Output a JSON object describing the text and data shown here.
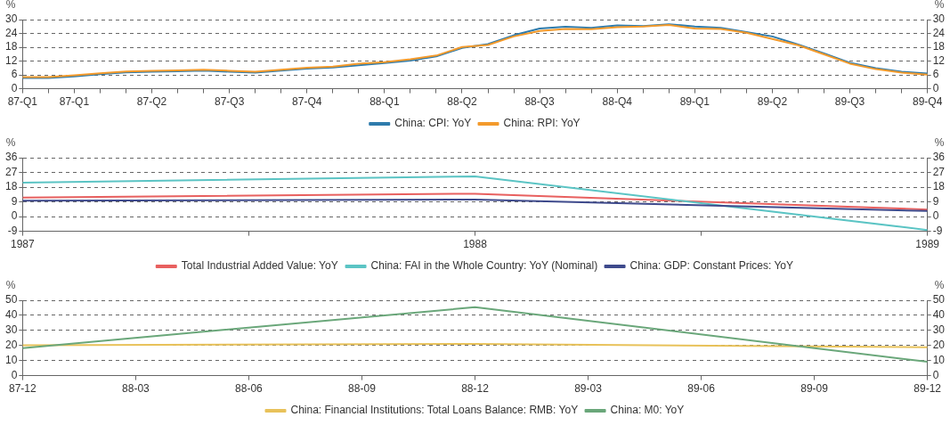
{
  "chart_data": [
    {
      "type": "line",
      "ylabel": "%",
      "y2label": "%",
      "categories": [
        "87-Q1",
        null,
        "87-Q1",
        null,
        null,
        "87-Q2",
        null,
        null,
        "87-Q3",
        null,
        null,
        "87-Q4",
        null,
        null,
        "88-Q1",
        null,
        null,
        "88-Q2",
        null,
        null,
        "88-Q3",
        null,
        null,
        "88-Q4",
        null,
        null,
        "89-Q1",
        null,
        null,
        "89-Q2",
        null,
        null,
        "89-Q3",
        null,
        null,
        "89-Q4"
      ],
      "series": [
        {
          "name": "China: CPI: YoY",
          "color": "#2e7bac",
          "values": [
            4.7,
            4.7,
            5.4,
            6.3,
            7.1,
            7.4,
            7.6,
            7.9,
            7.4,
            7.0,
            7.9,
            8.7,
            9.2,
            10.2,
            11.2,
            12.2,
            14.0,
            17.7,
            19.4,
            23.2,
            26.1,
            26.9,
            26.4,
            27.5,
            27.2,
            28.0,
            27.0,
            26.4,
            24.6,
            22.7,
            19.2,
            15.3,
            11.3,
            8.9,
            7.4,
            6.6
          ]
        },
        {
          "name": "China: RPI: YoY",
          "color": "#f39a2c",
          "values": [
            5.1,
            5.1,
            5.8,
            6.7,
            7.5,
            7.8,
            8.0,
            8.3,
            7.8,
            7.4,
            8.3,
            9.1,
            9.6,
            10.9,
            11.5,
            12.8,
            14.4,
            18.1,
            19.0,
            22.7,
            25.1,
            25.9,
            25.8,
            26.7,
            27.0,
            27.7,
            26.1,
            25.9,
            24.3,
            21.6,
            18.9,
            14.9,
            10.9,
            8.5,
            7.0,
            6.1
          ]
        }
      ],
      "ylim": [
        0,
        30
      ],
      "yticks": [
        0,
        6,
        12,
        18,
        24,
        30
      ],
      "y2lim": [
        0,
        30
      ],
      "y2ticks": [
        0,
        6,
        12,
        18,
        24,
        30
      ],
      "grid": "y",
      "legend": "bottom",
      "marker": "none",
      "line_style": "solid"
    },
    {
      "type": "line",
      "ylabel": "%",
      "y2label": "%",
      "x": [
        1987,
        1988,
        1989
      ],
      "series": [
        {
          "name": "Total Industrial Added Value: YoY",
          "color": "#e8605f",
          "values": [
            11.6,
            14.0,
            4.3
          ]
        },
        {
          "name": "China: FAI in the Whole Country: YoY (Nominal)",
          "color": "#5bc4c4",
          "values": [
            20.8,
            24.6,
            -8.2
          ]
        },
        {
          "name": "China: GDP: Constant Prices: YoY",
          "color": "#3e4a8c",
          "values": [
            9.7,
            10.4,
            3.4
          ]
        }
      ],
      "xlim": [
        1987,
        1989
      ],
      "xticks": [
        1987,
        {
          "value": 1987.5,
          "label": null
        },
        1988,
        {
          "value": 1988.5,
          "label": null
        },
        1989
      ],
      "ylim": [
        -9,
        36
      ],
      "yticks": [
        -9,
        0,
        9,
        18,
        27,
        36
      ],
      "y2lim": [
        -9,
        36
      ],
      "y2ticks": [
        -9,
        0,
        9,
        18,
        27,
        36
      ],
      "grid": "y",
      "legend": "bottom",
      "marker": "none",
      "line_style": "solid"
    },
    {
      "type": "line",
      "ylabel": "%",
      "y2label": "%",
      "x": [
        "1987-12",
        "1988-12",
        "1989-12"
      ],
      "series": [
        {
          "name": "China: Financial Institutions: Total Loans Balance: RMB: YoY",
          "color": "#e8c25a",
          "values": [
            20.2,
            21.1,
            18.8
          ]
        },
        {
          "name": "China: M0: YoY",
          "color": "#6aa77a",
          "values": [
            18.3,
            45.4,
            9.2
          ]
        }
      ],
      "xlim": [
        "1987-12",
        "1989-12"
      ],
      "xticks": [
        {
          "value": "1987-12",
          "label": "87-12"
        },
        {
          "value": "1988-03",
          "label": "88-03"
        },
        {
          "value": "1988-06",
          "label": "88-06"
        },
        {
          "value": "1988-09",
          "label": "88-09"
        },
        {
          "value": "1988-12",
          "label": "88-12"
        },
        {
          "value": "1989-03",
          "label": "89-03"
        },
        {
          "value": "1989-06",
          "label": "89-06"
        },
        {
          "value": "1989-09",
          "label": "89-09"
        },
        {
          "value": "1989-12",
          "label": "89-12"
        }
      ],
      "ylim": [
        0,
        50
      ],
      "yticks": [
        0,
        10,
        20,
        30,
        40,
        50
      ],
      "y2lim": [
        0,
        50
      ],
      "y2ticks": [
        0,
        10,
        20,
        30,
        40,
        50
      ],
      "grid": "y",
      "legend": "bottom",
      "marker": "none",
      "line_style": "solid"
    }
  ]
}
